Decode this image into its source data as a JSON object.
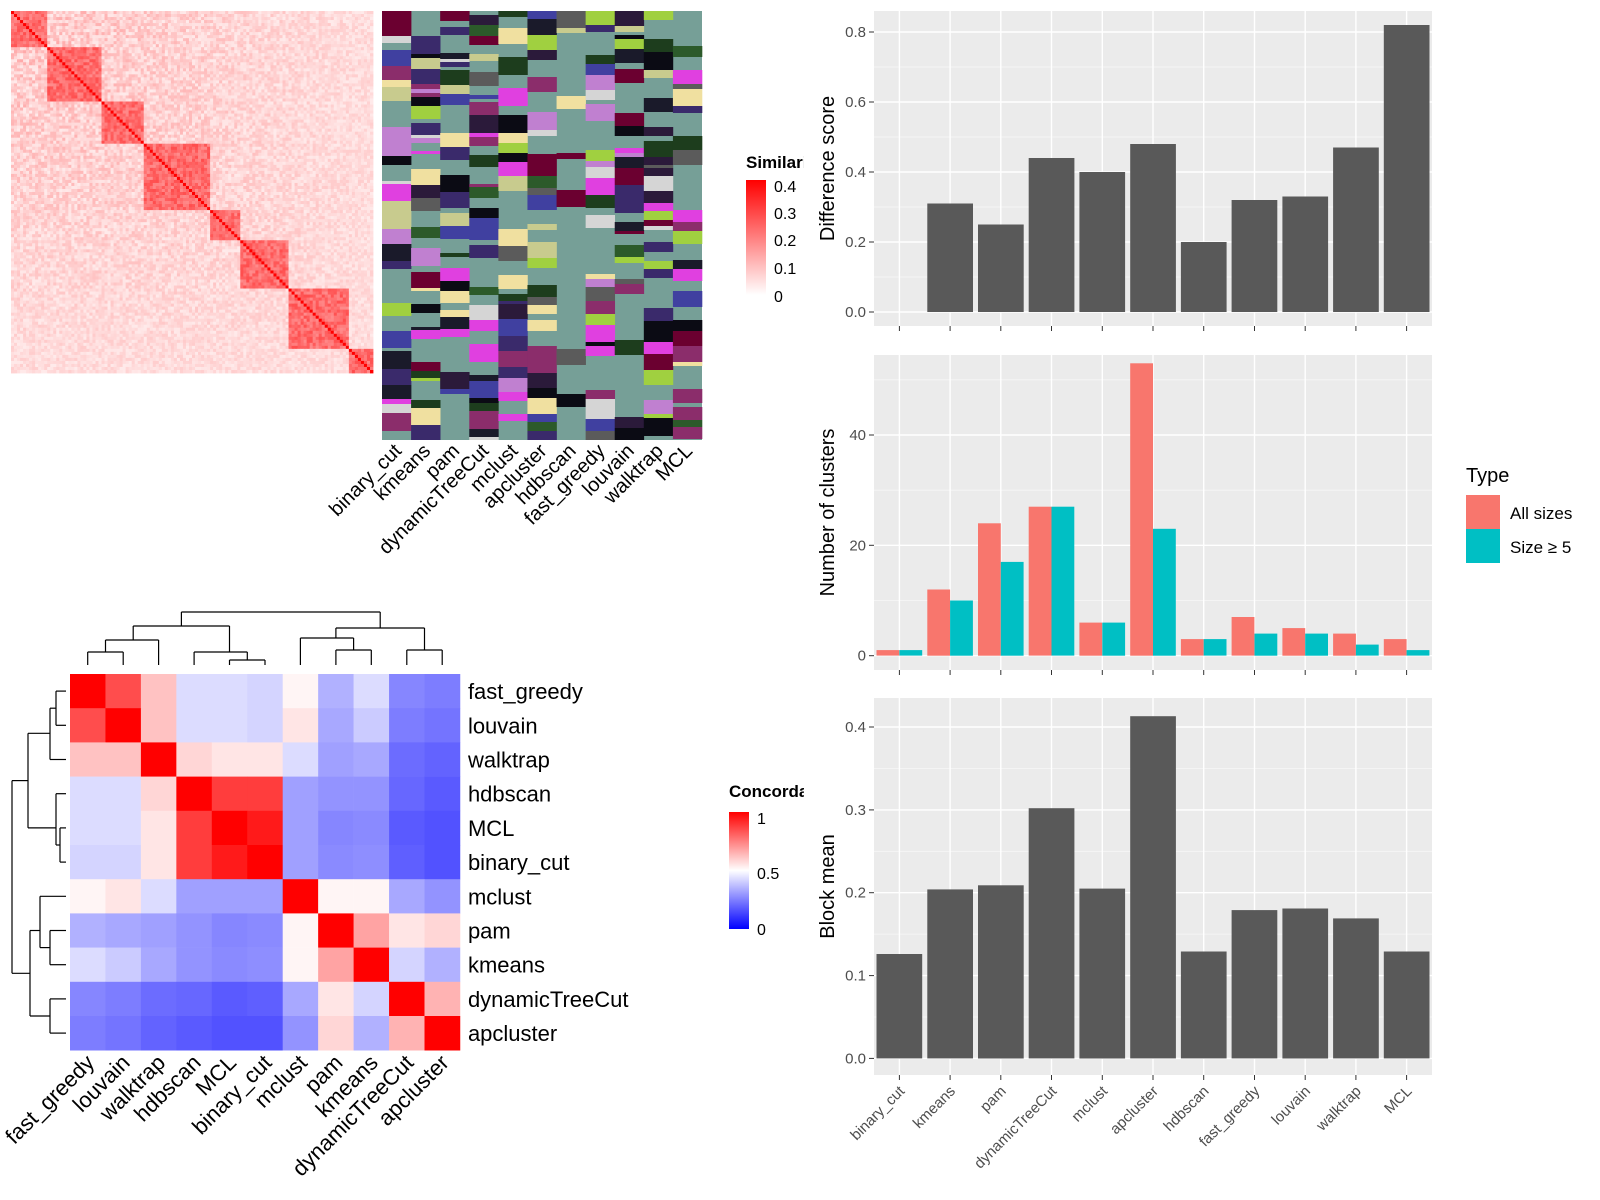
{
  "methods_order": [
    "binary_cut",
    "kmeans",
    "pam",
    "dynamicTreeCut",
    "mclust",
    "apcluster",
    "hdbscan",
    "fast_greedy",
    "louvain",
    "walktrap",
    "MCL"
  ],
  "similarity_heatmap": {
    "legend_title": "Similarity",
    "legend_ticks": [
      "0.4",
      "0.3",
      "0.2",
      "0.1",
      "0"
    ],
    "color_low": "#ffffff",
    "color_high": "#ff0000",
    "column_labels": [
      "binary_cut",
      "kmeans",
      "pam",
      "dynamicTreeCut",
      "mclust",
      "apcluster",
      "hdbscan",
      "fast_greedy",
      "louvain",
      "walktrap",
      "MCL"
    ],
    "annotation_background": "#769f97"
  },
  "concordance_heatmap": {
    "legend_title": "Concordance",
    "legend_ticks": [
      "1",
      "0.5",
      "0"
    ],
    "color_low": "#0000ff",
    "color_mid": "#ffffff",
    "color_high": "#ff0000",
    "labels": [
      "fast_greedy",
      "louvain",
      "walktrap",
      "hdbscan",
      "MCL",
      "binary_cut",
      "mclust",
      "pam",
      "kmeans",
      "dynamicTreeCut",
      "apcluster"
    ],
    "values": [
      [
        1.0,
        0.85,
        0.62,
        0.42,
        0.42,
        0.4,
        0.52,
        0.32,
        0.42,
        0.22,
        0.2
      ],
      [
        0.85,
        1.0,
        0.62,
        0.42,
        0.42,
        0.4,
        0.55,
        0.3,
        0.38,
        0.2,
        0.18
      ],
      [
        0.62,
        0.62,
        1.0,
        0.58,
        0.55,
        0.55,
        0.42,
        0.28,
        0.3,
        0.16,
        0.14
      ],
      [
        0.42,
        0.42,
        0.58,
        1.0,
        0.88,
        0.88,
        0.28,
        0.25,
        0.25,
        0.15,
        0.12
      ],
      [
        0.42,
        0.42,
        0.55,
        0.88,
        1.0,
        0.95,
        0.28,
        0.22,
        0.23,
        0.12,
        0.1
      ],
      [
        0.4,
        0.4,
        0.55,
        0.88,
        0.95,
        1.0,
        0.28,
        0.23,
        0.24,
        0.13,
        0.1
      ],
      [
        0.52,
        0.55,
        0.42,
        0.28,
        0.28,
        0.28,
        1.0,
        0.52,
        0.52,
        0.3,
        0.25
      ],
      [
        0.32,
        0.3,
        0.28,
        0.25,
        0.22,
        0.23,
        0.52,
        1.0,
        0.68,
        0.55,
        0.58
      ],
      [
        0.42,
        0.38,
        0.3,
        0.25,
        0.23,
        0.24,
        0.52,
        0.68,
        1.0,
        0.4,
        0.32
      ],
      [
        0.22,
        0.2,
        0.16,
        0.15,
        0.12,
        0.13,
        0.3,
        0.55,
        0.4,
        1.0,
        0.65
      ],
      [
        0.2,
        0.18,
        0.14,
        0.12,
        0.1,
        0.1,
        0.25,
        0.58,
        0.32,
        0.65,
        1.0
      ]
    ]
  },
  "chart_data": [
    {
      "type": "bar",
      "categories": [
        "binary_cut",
        "kmeans",
        "pam",
        "dynamicTreeCut",
        "mclust",
        "apcluster",
        "hdbscan",
        "fast_greedy",
        "louvain",
        "walktrap",
        "MCL"
      ],
      "values": [
        0.0,
        0.31,
        0.25,
        0.44,
        0.4,
        0.48,
        0.2,
        0.32,
        0.33,
        0.47,
        0.82
      ],
      "ylabel": "Difference score",
      "ylim": [
        -0.04,
        0.86
      ],
      "yticks": [
        "0.0",
        "0.2",
        "0.4",
        "0.6",
        "0.8"
      ],
      "color": "#595959"
    },
    {
      "type": "bar",
      "categories": [
        "binary_cut",
        "kmeans",
        "pam",
        "dynamicTreeCut",
        "mclust",
        "apcluster",
        "hdbscan",
        "fast_greedy",
        "louvain",
        "walktrap",
        "MCL"
      ],
      "series": [
        {
          "name": "All sizes",
          "values": [
            1,
            12,
            24,
            27,
            6,
            53,
            3,
            7,
            5,
            4,
            3
          ],
          "color": "#f8766d"
        },
        {
          "name": "Size ≥ 5",
          "values": [
            1,
            10,
            17,
            27,
            6,
            23,
            3,
            4,
            4,
            2,
            1
          ],
          "color": "#00bfc4"
        }
      ],
      "legend_title": "Type",
      "legend_position": "right",
      "ylabel": "Number of clusters",
      "ylim": [
        -2.6,
        54.5
      ],
      "yticks": [
        "0",
        "20",
        "40"
      ]
    },
    {
      "type": "bar",
      "categories": [
        "binary_cut",
        "kmeans",
        "pam",
        "dynamicTreeCut",
        "mclust",
        "apcluster",
        "hdbscan",
        "fast_greedy",
        "louvain",
        "walktrap",
        "MCL"
      ],
      "values": [
        0.126,
        0.204,
        0.209,
        0.302,
        0.205,
        0.413,
        0.129,
        0.179,
        0.181,
        0.169,
        0.129
      ],
      "ylabel": "Block mean",
      "ylim": [
        -0.02,
        0.435
      ],
      "yticks": [
        "0.0",
        "0.1",
        "0.2",
        "0.3",
        "0.4"
      ],
      "color": "#595959"
    }
  ]
}
